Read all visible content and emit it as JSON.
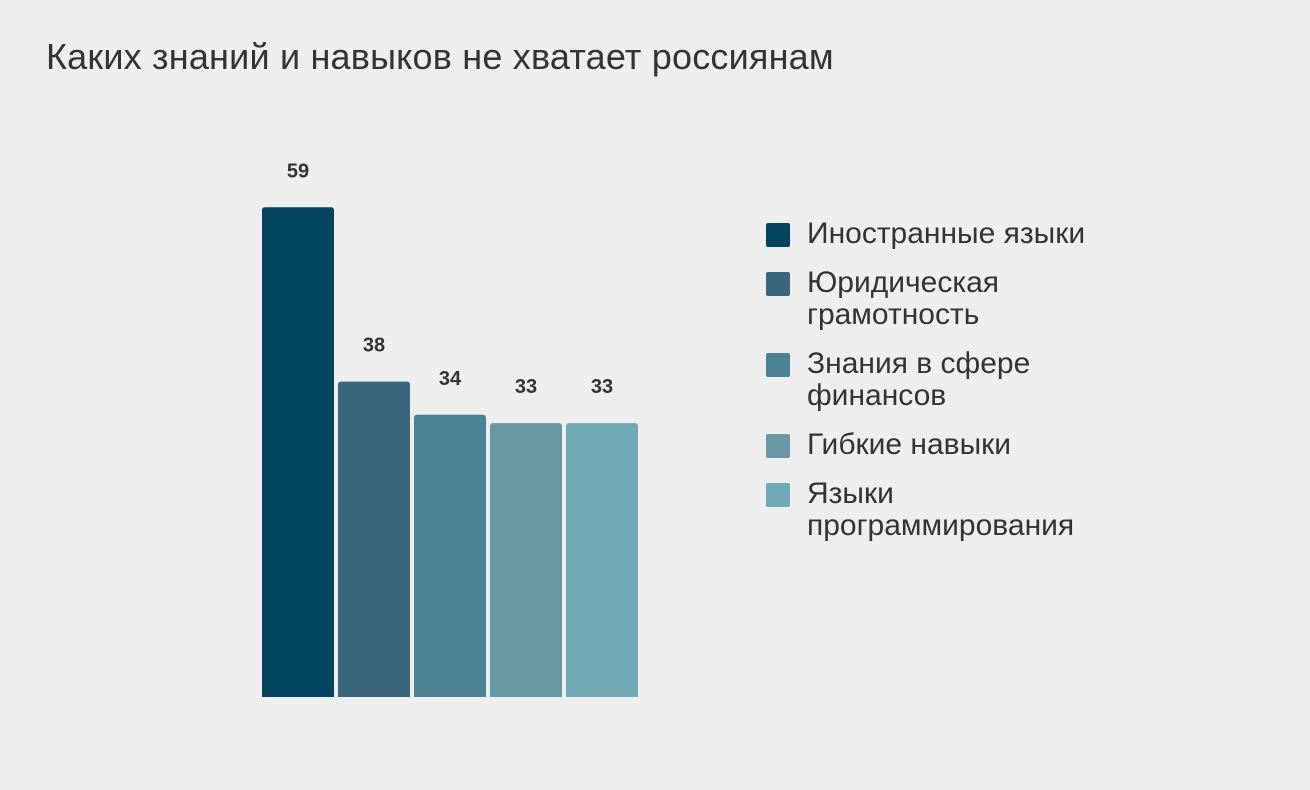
{
  "chart_data": {
    "type": "bar",
    "title": "Каких знаний и навыков не хватает россиянам",
    "categories": [
      "Иностранные языки",
      "Юридическая грамотность",
      "Знания в сфере финансов",
      "Гибкие навыки",
      "Языки программирования"
    ],
    "values": [
      59,
      38,
      34,
      33,
      33
    ],
    "colors": [
      "#02445f",
      "#3a677e",
      "#4b8396",
      "#6998a5",
      "#71a9b6"
    ],
    "ylim": [
      0,
      60
    ],
    "grid": false,
    "legend": "right",
    "data_labels": true
  }
}
